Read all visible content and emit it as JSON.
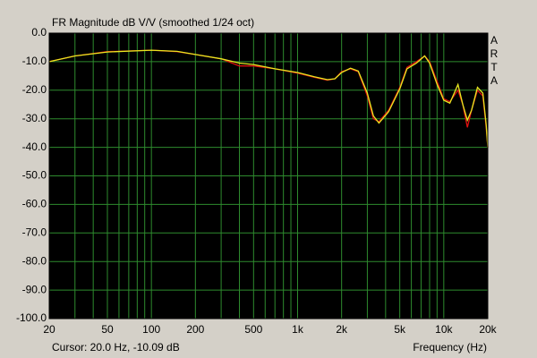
{
  "chart_data": {
    "type": "line",
    "title": "FR Magnitude dB V/V (smoothed 1/24 oct)",
    "side_label": "ARTA",
    "cursor_text": "Cursor: 20.0 Hz, -10.09 dB",
    "x_label": "Frequency (Hz)",
    "log_x": true,
    "grid": true,
    "xlim": [
      20,
      20000
    ],
    "xticks": [
      20,
      50,
      100,
      200,
      500,
      {
        "value": 1000,
        "label": "1k"
      },
      {
        "value": 2000,
        "label": "2k"
      },
      {
        "value": 5000,
        "label": "5k"
      },
      {
        "value": 10000,
        "label": "10k"
      },
      {
        "value": 20000,
        "label": "20k"
      }
    ],
    "x_minor_ticks": [
      30,
      40,
      60,
      70,
      80,
      90,
      300,
      400,
      600,
      700,
      800,
      900,
      3000,
      4000,
      6000,
      7000,
      8000,
      9000
    ],
    "ylim": [
      -100,
      0
    ],
    "yticks": [
      {
        "value": 0,
        "label": "0.0"
      },
      {
        "value": -10,
        "label": "-10.0"
      },
      {
        "value": -20,
        "label": "-20.0"
      },
      {
        "value": -30,
        "label": "-30.0"
      },
      {
        "value": -40,
        "label": "-40.0"
      },
      {
        "value": -50,
        "label": "-50.0"
      },
      {
        "value": -60,
        "label": "-60.0"
      },
      {
        "value": -70,
        "label": "-70.0"
      },
      {
        "value": -80,
        "label": "-80.0"
      },
      {
        "value": -90,
        "label": "-90.0"
      },
      {
        "value": -100,
        "label": "-100.0"
      }
    ],
    "x": [
      20,
      30,
      50,
      100,
      150,
      200,
      300,
      400,
      500,
      700,
      1000,
      1300,
      1600,
      1800,
      2000,
      2300,
      2600,
      3000,
      3300,
      3600,
      4200,
      5000,
      5600,
      6500,
      7400,
      8000,
      9000,
      10000,
      11000,
      12500,
      13500,
      14500,
      15500,
      17000,
      18500,
      19500,
      20000
    ],
    "series": [
      {
        "name": "red",
        "color": "#e01010",
        "values": [
          -10,
          -8,
          -6.5,
          -6,
          -6.5,
          -7.5,
          -9,
          -11.5,
          -11.5,
          -12.5,
          -14,
          -15.5,
          -16.5,
          -16,
          -13.5,
          -12.5,
          -13.5,
          -22,
          -30,
          -31,
          -27,
          -19,
          -12,
          -10,
          -8,
          -10,
          -17,
          -23,
          -24,
          -20,
          -25,
          -33,
          -27,
          -20,
          -22,
          -33,
          -40
        ]
      },
      {
        "name": "yellow",
        "color": "#e8e820",
        "values": [
          -10,
          -8,
          -6.6,
          -6,
          -6.4,
          -7.5,
          -9,
          -10.5,
          -11,
          -12.5,
          -13.8,
          -15.3,
          -16.3,
          -16,
          -13.8,
          -12.3,
          -13.3,
          -21,
          -29,
          -31.5,
          -27.5,
          -19.5,
          -12.5,
          -10.5,
          -8,
          -10.5,
          -18,
          -23.5,
          -24.5,
          -18,
          -25,
          -30.5,
          -27,
          -19,
          -21,
          -32,
          -40
        ]
      }
    ]
  }
}
